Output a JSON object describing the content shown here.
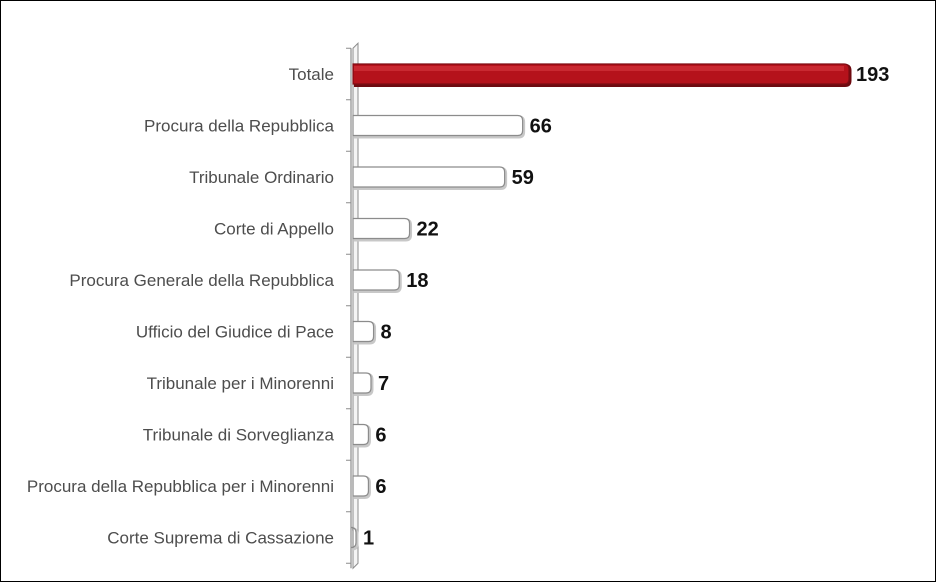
{
  "chart_data": {
    "type": "bar",
    "orientation": "horizontal",
    "categories": [
      "Totale",
      "Procura della Repubblica",
      "Tribunale Ordinario",
      "Corte di Appello",
      "Procura Generale della Repubblica",
      "Ufficio del Giudice di Pace",
      "Tribunale per i Minorenni",
      "Tribunale di Sorveglianza",
      "Procura della Repubblica per i Minorenni",
      "Corte Suprema di Cassazione"
    ],
    "values": [
      193,
      66,
      59,
      22,
      18,
      8,
      7,
      6,
      6,
      1
    ],
    "xlim": [
      0,
      193
    ],
    "grid": false,
    "legend": "none",
    "colors": {
      "highlight_bar": "#b5121b",
      "highlight_bar_top": "#d2333b",
      "bar_fill": "#ffffff",
      "bar_outline": "#8c8c8c",
      "bar_shadow": "#c8c8c8",
      "axis": "#8c8c8c",
      "category_text": "#4d4d4d",
      "value_text": "#111111"
    }
  }
}
